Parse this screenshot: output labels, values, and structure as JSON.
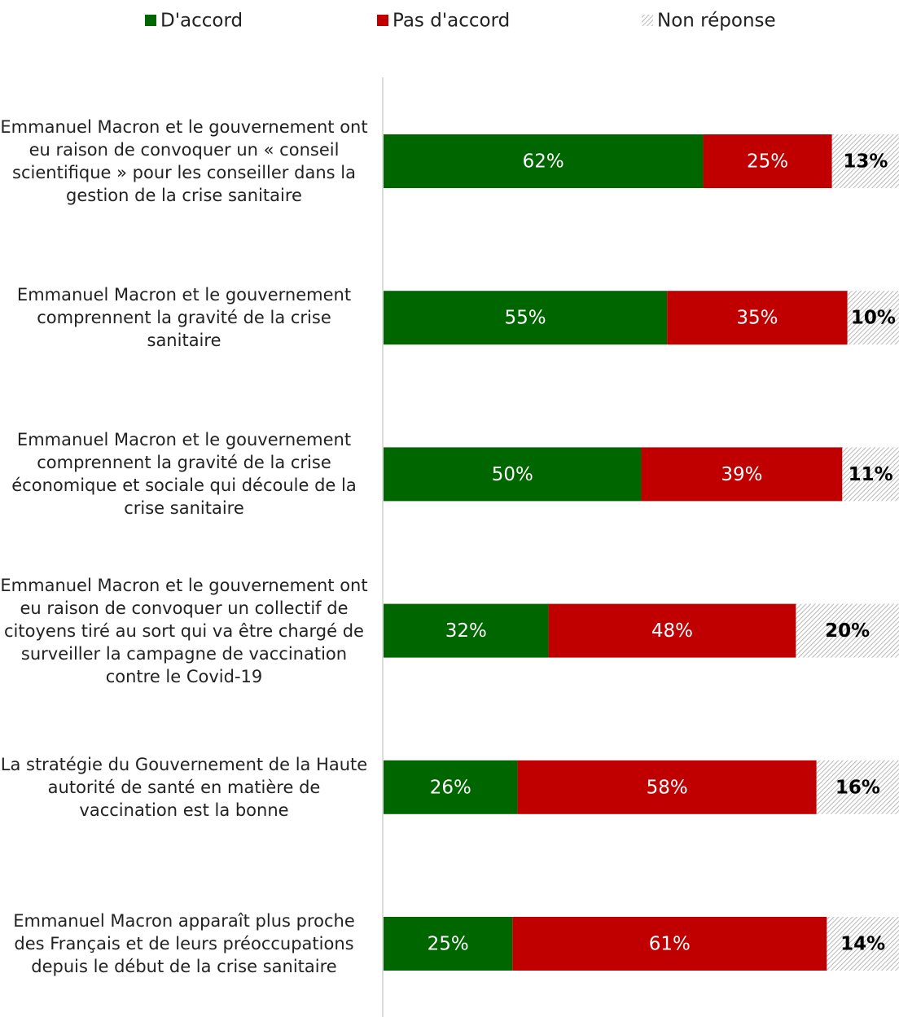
{
  "chart_data": {
    "type": "stacked-bar-horizontal",
    "categories": [
      "Emmanuel Macron et le gouvernement ont eu raison de convoquer un « conseil scientifique » pour les conseiller dans la gestion de la crise sanitaire",
      "Emmanuel Macron et le gouvernement comprennent la gravité de la crise sanitaire",
      "Emmanuel Macron et le gouvernement comprennent la gravité de la crise économique et sociale qui découle de la crise sanitaire",
      "Emmanuel Macron et le gouvernement ont eu raison de convoquer un collectif de citoyens tiré au sort qui va être chargé de surveiller la campagne de vaccination contre le Covid-19",
      "La stratégie du Gouvernement de la Haute autorité de santé en matière de vaccination est la bonne",
      "Emmanuel Macron apparaît plus proche des Français et de leurs préoccupations depuis le début de la crise sanitaire"
    ],
    "series": [
      {
        "name": "D'accord",
        "color": "#006600",
        "values": [
          62,
          55,
          50,
          32,
          26,
          25
        ],
        "value_labels": [
          "62%",
          "55%",
          "50%",
          "32%",
          "26%",
          "25%"
        ]
      },
      {
        "name": "Pas d'accord",
        "color": "#c00000",
        "values": [
          25,
          35,
          39,
          48,
          58,
          61
        ],
        "value_labels": [
          "25%",
          "35%",
          "39%",
          "48%",
          "58%",
          "61%"
        ]
      },
      {
        "name": "Non réponse",
        "color": "#a6a6a6",
        "hatched": true,
        "values": [
          13,
          10,
          11,
          20,
          16,
          14
        ],
        "value_labels": [
          "13%",
          "10%",
          "11%",
          "20%",
          "16%",
          "14%"
        ]
      }
    ],
    "legend": "top"
  }
}
